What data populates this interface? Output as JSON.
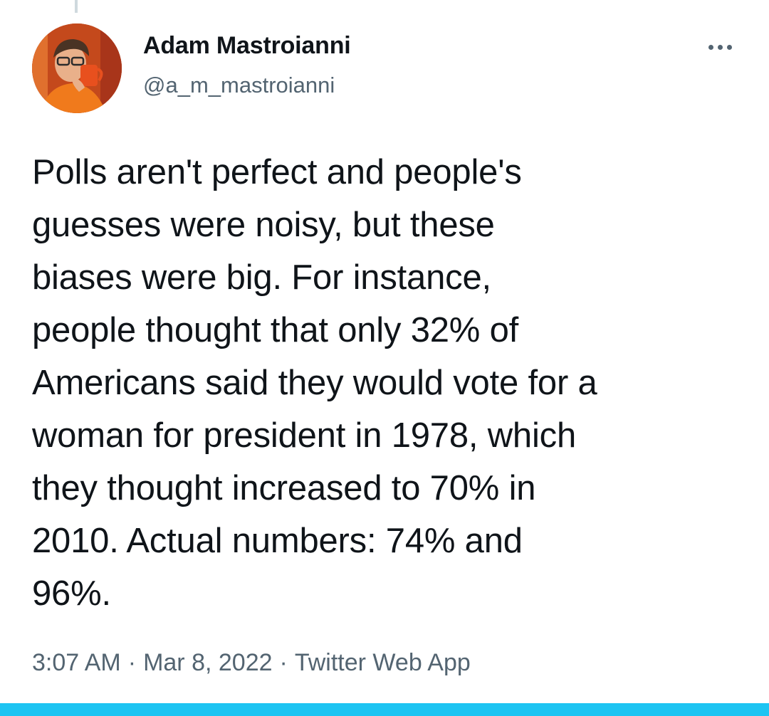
{
  "tweet": {
    "author": {
      "display_name": "Adam Mastroianni",
      "handle": "@a_m_mastroianni"
    },
    "text_lines": [
      "Polls aren't perfect and people's",
      "guesses were noisy, but these",
      "biases were big. For instance,",
      "people thought that only 32% of",
      "Americans said they would vote for a",
      "woman for president in 1978, which",
      "they thought increased to 70% in",
      "2010. Actual numbers: 74% and",
      "96%."
    ],
    "time": "3:07 AM",
    "date": "Mar 8, 2022",
    "separator": "·",
    "source": "Twitter Web App"
  },
  "icons": {
    "more": "more-horizontal-icon"
  },
  "colors": {
    "text_primary": "#0f1419",
    "text_secondary": "#536471",
    "accent_bar": "#1dc4f2"
  }
}
